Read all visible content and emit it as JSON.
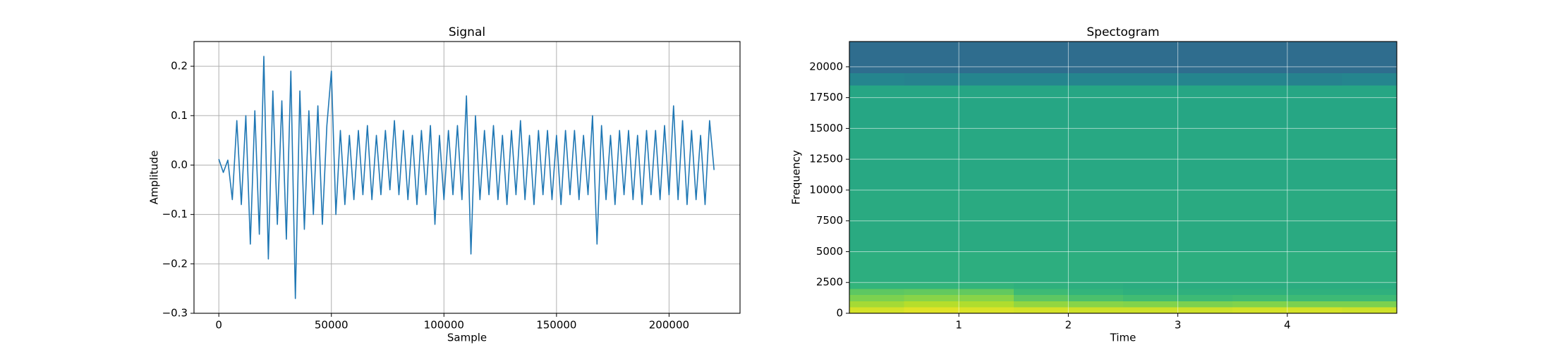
{
  "chart_data": [
    {
      "type": "line",
      "title": "Signal",
      "xlabel": "Sample",
      "ylabel": "Amplitude",
      "x": [
        0,
        2000,
        4000,
        6000,
        8000,
        10000,
        12000,
        14000,
        16000,
        18000,
        20000,
        22000,
        24000,
        26000,
        28000,
        30000,
        32000,
        34000,
        36000,
        38000,
        40000,
        42000,
        44000,
        46000,
        48000,
        50000,
        52000,
        54000,
        56000,
        58000,
        60000,
        62000,
        64000,
        66000,
        68000,
        70000,
        72000,
        74000,
        76000,
        78000,
        80000,
        82000,
        84000,
        86000,
        88000,
        90000,
        92000,
        94000,
        96000,
        98000,
        100000,
        102000,
        104000,
        106000,
        108000,
        110000,
        112000,
        114000,
        116000,
        118000,
        120000,
        122000,
        124000,
        126000,
        128000,
        130000,
        132000,
        134000,
        136000,
        138000,
        140000,
        142000,
        144000,
        146000,
        148000,
        150000,
        152000,
        154000,
        156000,
        158000,
        160000,
        162000,
        164000,
        166000,
        168000,
        170000,
        172000,
        174000,
        176000,
        178000,
        180000,
        182000,
        184000,
        186000,
        188000,
        190000,
        192000,
        194000,
        196000,
        198000,
        200000,
        202000,
        204000,
        206000,
        208000,
        210000,
        212000,
        214000,
        216000,
        218000,
        220000
      ],
      "series": [
        {
          "color": "#1f77b4",
          "values": [
            0.012,
            -0.015,
            0.01,
            -0.07,
            0.09,
            -0.08,
            0.1,
            -0.16,
            0.11,
            -0.14,
            0.22,
            -0.19,
            0.15,
            -0.12,
            0.13,
            -0.15,
            0.19,
            -0.27,
            0.15,
            -0.13,
            0.11,
            -0.1,
            0.12,
            -0.12,
            0.08,
            0.19,
            -0.1,
            0.07,
            -0.08,
            0.06,
            -0.07,
            0.07,
            -0.06,
            0.08,
            -0.07,
            0.06,
            -0.06,
            0.07,
            -0.05,
            0.09,
            -0.06,
            0.07,
            -0.07,
            0.06,
            -0.08,
            0.07,
            -0.06,
            0.08,
            -0.12,
            0.06,
            -0.07,
            0.07,
            -0.06,
            0.08,
            -0.07,
            0.14,
            -0.18,
            0.1,
            -0.07,
            0.07,
            -0.06,
            0.08,
            -0.07,
            0.06,
            -0.08,
            0.07,
            -0.06,
            0.09,
            -0.07,
            0.06,
            -0.08,
            0.07,
            -0.06,
            0.07,
            -0.07,
            0.06,
            -0.08,
            0.07,
            -0.06,
            0.07,
            -0.07,
            0.06,
            -0.06,
            0.1,
            -0.16,
            0.08,
            -0.07,
            0.06,
            -0.08,
            0.07,
            -0.06,
            0.07,
            -0.07,
            0.06,
            -0.08,
            0.07,
            -0.06,
            0.07,
            -0.07,
            0.08,
            -0.06,
            0.12,
            -0.07,
            0.09,
            -0.08,
            0.07,
            -0.07,
            0.06,
            -0.08,
            0.09,
            -0.01
          ]
        }
      ],
      "xlim": [
        -11025,
        231525
      ],
      "xticks": [
        0,
        50000,
        100000,
        150000,
        200000
      ],
      "ylim": [
        -0.3,
        0.25
      ],
      "yticks": [
        {
          "value": -0.3,
          "label": "−0.3"
        },
        {
          "value": -0.2,
          "label": "−0.2"
        },
        {
          "value": -0.1,
          "label": "−0.1"
        },
        {
          "value": 0,
          "label": "0.0"
        },
        0.1,
        0.2
      ],
      "grid": true
    },
    {
      "type": "heatmap",
      "title": "Spectogram",
      "xlabel": "Time",
      "ylabel": "Frequency",
      "colormap": "viridis",
      "xbins": [
        0,
        0.5,
        1,
        1.5,
        2,
        2.5,
        3,
        3.5,
        4,
        4.5,
        5
      ],
      "ybins": [
        0,
        500,
        1000,
        1500,
        2000,
        2500,
        5000,
        10000,
        15000,
        18500,
        19500,
        22050
      ],
      "z": [
        [
          -47,
          -45,
          -46,
          -47,
          -48,
          -48,
          -48,
          -47,
          -47,
          -48
        ],
        [
          -55,
          -52,
          -53,
          -58,
          -60,
          -61,
          -62,
          -61,
          -62,
          -62
        ],
        [
          -62,
          -60,
          -60,
          -68,
          -72,
          -74,
          -75,
          -74,
          -75,
          -75
        ],
        [
          -68,
          -67,
          -67,
          -75,
          -78,
          -80,
          -80,
          -80,
          -80,
          -80
        ],
        [
          -78,
          -78,
          -78,
          -80,
          -81,
          -82,
          -82,
          -82,
          -82,
          -82
        ],
        [
          -81,
          -81,
          -81,
          -81,
          -81,
          -81,
          -81,
          -81,
          -81,
          -81
        ],
        [
          -83,
          -83,
          -83,
          -83,
          -83,
          -83,
          -83,
          -83,
          -83,
          -83
        ],
        [
          -84,
          -84,
          -84,
          -84,
          -84,
          -84,
          -84,
          -84,
          -84,
          -84
        ],
        [
          -85,
          -85,
          -85,
          -85,
          -85,
          -85,
          -85,
          -85,
          -85,
          -85
        ],
        [
          -100,
          -101,
          -100,
          -100,
          -100,
          -100,
          -100,
          -100,
          -101,
          -100
        ],
        [
          -111,
          -111,
          -111,
          -111,
          -111,
          -111,
          -111,
          -111,
          -111,
          -111
        ]
      ],
      "zlim": [
        -150,
        -40
      ],
      "xlim": [
        0,
        5
      ],
      "xticks": [
        1,
        2,
        3,
        4
      ],
      "ylim": [
        0,
        22050
      ],
      "yticks": [
        0,
        2500,
        5000,
        7500,
        10000,
        12500,
        15000,
        17500,
        20000
      ],
      "grid": true
    }
  ]
}
